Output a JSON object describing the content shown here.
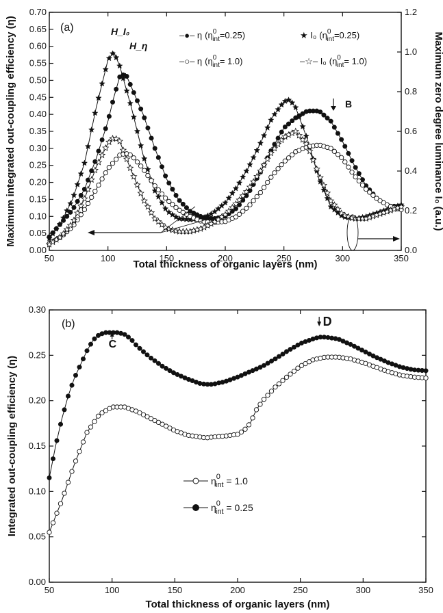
{
  "chart_data": [
    {
      "type": "line",
      "panel_label": "(a)",
      "title": "",
      "xlabel": "Total thickness of organic layers (nm)",
      "ylabel": "Maximum integrated out-coupling efficiency (η)",
      "y2label": "Maximum zero degree luminance I₀ (a.u.)",
      "xlim": [
        50,
        350
      ],
      "ylim": [
        0.0,
        0.7
      ],
      "y2lim": [
        0.0,
        1.2
      ],
      "grid": false,
      "legend_position": "top-right",
      "x_ticks": [
        50,
        100,
        150,
        200,
        250,
        300,
        350
      ],
      "x_tick_labels": [
        "50",
        "100",
        "150",
        "200",
        "250",
        "300",
        "350"
      ],
      "y_ticks": [
        0.0,
        0.05,
        0.1,
        0.15,
        0.2,
        0.25,
        0.3,
        0.35,
        0.4,
        0.45,
        0.5,
        0.55,
        0.6,
        0.65,
        0.7
      ],
      "y_tick_labels": [
        "0.00",
        "0.05",
        "0.10",
        "0.15",
        "0.20",
        "0.25",
        "0.30",
        "0.35",
        "0.40",
        "0.45",
        "0.50",
        "0.55",
        "0.60",
        "0.65",
        "0.70"
      ],
      "y2_ticks": [
        0.0,
        0.2,
        0.4,
        0.6,
        0.8,
        1.0,
        1.2
      ],
      "y2_tick_labels": [
        "0.0",
        "0.2",
        "0.4",
        "0.6",
        "0.8",
        "1.0",
        "1.2"
      ],
      "legend": [
        {
          "line": "–●– η",
          "sub": "(η",
          "sup": "0",
          "int": "int",
          "tail": "=0.25)"
        },
        {
          "line": "★ I₀",
          "sub": "(η",
          "sup": "0",
          "int": "int",
          "tail": "=0.25)"
        },
        {
          "line": "–○– η",
          "sub": "(η",
          "sup": "0",
          "int": "int",
          "tail": "= 1.0)"
        },
        {
          "line": "–☆– I₀",
          "sub": "(η",
          "sup": "0",
          "int": "int",
          "tail": "= 1.0)"
        }
      ],
      "annotations": [
        "H_I₀",
        "H_η",
        "B"
      ],
      "series": [
        {
          "legend_index": 0,
          "axis": "left",
          "marker": "filled-circle",
          "x": [
            50,
            60,
            70,
            80,
            90,
            100,
            105,
            110,
            115,
            120,
            130,
            140,
            150,
            160,
            170,
            180,
            190,
            200,
            210,
            220,
            230,
            240,
            250,
            260,
            270,
            280,
            290,
            300,
            310,
            320,
            330,
            340,
            350
          ],
          "y": [
            0.04,
            0.08,
            0.12,
            0.18,
            0.27,
            0.38,
            0.45,
            0.51,
            0.52,
            0.48,
            0.4,
            0.3,
            0.21,
            0.15,
            0.115,
            0.098,
            0.093,
            0.1,
            0.125,
            0.17,
            0.23,
            0.3,
            0.36,
            0.39,
            0.41,
            0.41,
            0.38,
            0.32,
            0.25,
            0.19,
            0.15,
            0.13,
            0.13
          ]
        },
        {
          "legend_index": 1,
          "axis": "right",
          "marker": "filled-star",
          "x": [
            50,
            60,
            70,
            80,
            90,
            100,
            105,
            110,
            120,
            130,
            140,
            150,
            160,
            170,
            180,
            190,
            200,
            210,
            220,
            230,
            240,
            250,
            255,
            260,
            270,
            280,
            290,
            300,
            310,
            320,
            330,
            340,
            350
          ],
          "y": [
            0.06,
            0.14,
            0.26,
            0.44,
            0.72,
            0.96,
            1.0,
            0.93,
            0.72,
            0.48,
            0.3,
            0.2,
            0.16,
            0.155,
            0.16,
            0.19,
            0.24,
            0.32,
            0.42,
            0.54,
            0.67,
            0.75,
            0.76,
            0.72,
            0.56,
            0.36,
            0.22,
            0.17,
            0.16,
            0.17,
            0.19,
            0.21,
            0.23
          ]
        },
        {
          "legend_index": 2,
          "axis": "left",
          "marker": "open-circle",
          "x": [
            50,
            60,
            70,
            80,
            90,
            100,
            110,
            115,
            120,
            130,
            140,
            150,
            160,
            170,
            180,
            190,
            200,
            210,
            220,
            230,
            240,
            250,
            260,
            270,
            280,
            290,
            300,
            310,
            320,
            330,
            340,
            350
          ],
          "y": [
            0.02,
            0.04,
            0.07,
            0.12,
            0.18,
            0.24,
            0.28,
            0.285,
            0.28,
            0.24,
            0.19,
            0.15,
            0.12,
            0.1,
            0.085,
            0.082,
            0.085,
            0.1,
            0.13,
            0.17,
            0.22,
            0.26,
            0.29,
            0.305,
            0.31,
            0.3,
            0.27,
            0.22,
            0.18,
            0.15,
            0.13,
            0.12
          ]
        },
        {
          "legend_index": 3,
          "axis": "right",
          "marker": "open-star",
          "x": [
            50,
            60,
            70,
            80,
            90,
            100,
            105,
            110,
            120,
            130,
            140,
            150,
            160,
            170,
            180,
            190,
            200,
            210,
            220,
            230,
            240,
            250,
            260,
            270,
            280,
            290,
            300,
            310,
            320,
            330,
            340,
            350
          ],
          "y": [
            0.03,
            0.07,
            0.14,
            0.26,
            0.42,
            0.54,
            0.57,
            0.55,
            0.4,
            0.26,
            0.16,
            0.11,
            0.095,
            0.095,
            0.11,
            0.14,
            0.18,
            0.24,
            0.31,
            0.4,
            0.5,
            0.57,
            0.6,
            0.53,
            0.38,
            0.25,
            0.18,
            0.16,
            0.16,
            0.18,
            0.2,
            0.22
          ]
        }
      ]
    },
    {
      "type": "line",
      "panel_label": "(b)",
      "title": "",
      "xlabel": "Total thickness of organic layers (nm)",
      "ylabel": "Integrated out-coupling efficiency (η)",
      "xlim": [
        50,
        350
      ],
      "ylim": [
        0.0,
        0.3
      ],
      "grid": false,
      "legend_position": "center-left",
      "x_ticks": [
        50,
        100,
        150,
        200,
        250,
        300,
        350
      ],
      "x_tick_labels": [
        "50",
        "100",
        "150",
        "200",
        "250",
        "300",
        "350"
      ],
      "y_ticks": [
        0.0,
        0.05,
        0.1,
        0.15,
        0.2,
        0.25,
        0.3
      ],
      "y_tick_labels": [
        "0.00",
        "0.05",
        "0.10",
        "0.15",
        "0.20",
        "0.25",
        "0.30"
      ],
      "legend": [
        {
          "line": "–○–",
          "sub": "η",
          "sup": "0",
          "int": "int",
          "tail": " = 1.0"
        },
        {
          "line": "–●–",
          "sub": "η",
          "sup": "0",
          "int": "int",
          "tail": " = 0.25"
        }
      ],
      "annotations": [
        "C",
        "D"
      ],
      "series": [
        {
          "legend_index": 0,
          "marker": "open-circle",
          "x": [
            50,
            60,
            70,
            80,
            90,
            100,
            110,
            120,
            130,
            140,
            150,
            160,
            170,
            175,
            180,
            190,
            200,
            205,
            210,
            215,
            220,
            230,
            240,
            250,
            260,
            270,
            280,
            290,
            300,
            310,
            320,
            330,
            340,
            350
          ],
          "y": [
            0.055,
            0.09,
            0.13,
            0.165,
            0.185,
            0.193,
            0.193,
            0.188,
            0.181,
            0.174,
            0.167,
            0.162,
            0.16,
            0.159,
            0.16,
            0.161,
            0.163,
            0.167,
            0.175,
            0.19,
            0.2,
            0.215,
            0.227,
            0.238,
            0.245,
            0.248,
            0.248,
            0.246,
            0.242,
            0.237,
            0.232,
            0.228,
            0.226,
            0.225
          ]
        },
        {
          "legend_index": 1,
          "marker": "filled-circle",
          "x": [
            50,
            55,
            60,
            65,
            70,
            75,
            80,
            85,
            90,
            95,
            100,
            105,
            110,
            115,
            120,
            130,
            140,
            150,
            160,
            170,
            175,
            180,
            190,
            200,
            210,
            220,
            230,
            240,
            250,
            260,
            265,
            270,
            280,
            290,
            300,
            310,
            320,
            330,
            340,
            350
          ],
          "y": [
            0.115,
            0.15,
            0.18,
            0.205,
            0.225,
            0.24,
            0.255,
            0.267,
            0.273,
            0.275,
            0.275,
            0.275,
            0.273,
            0.268,
            0.26,
            0.248,
            0.238,
            0.23,
            0.224,
            0.219,
            0.218,
            0.218,
            0.221,
            0.226,
            0.232,
            0.238,
            0.246,
            0.255,
            0.263,
            0.268,
            0.27,
            0.27,
            0.268,
            0.262,
            0.255,
            0.248,
            0.242,
            0.237,
            0.234,
            0.233
          ]
        }
      ]
    }
  ]
}
